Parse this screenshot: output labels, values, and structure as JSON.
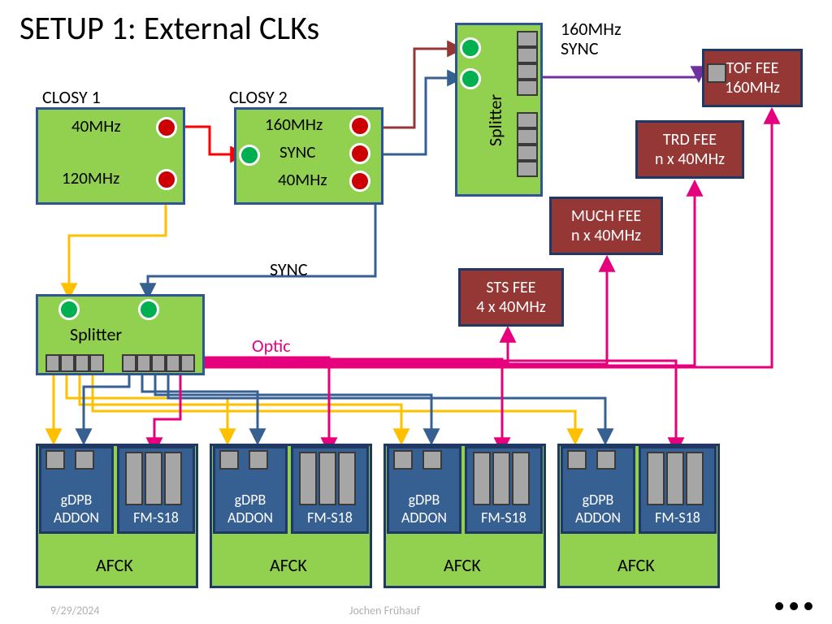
{
  "title": "SETUP 1: External CLKs",
  "footer_date": "9/29/2024",
  "footer_author": "Jochen Frühauf",
  "colors": {
    "green_fill": "#92d050",
    "green_stroke": "#2f5597",
    "brown_fill": "#953735",
    "brown_stroke": "#1f3864",
    "blue_fill": "#376092",
    "gray_fill": "#a6a6a6",
    "port_green": "#00b050",
    "port_red": "#cc0000",
    "wire_red": "#ff0000",
    "wire_darkred": "#953735",
    "wire_blue": "#376092",
    "wire_yellow": "#ffc000",
    "wire_magenta": "#e6007e",
    "wire_purple": "#7030a0"
  },
  "labels": {
    "closy1": "CLOSY 1",
    "closy2": "CLOSY 2",
    "clk_40": "40MHz",
    "clk_120": "120MHz",
    "clk_160": "160MHz",
    "sync": "SYNC",
    "splitter": "Splitter",
    "optic": "Optic",
    "top_splitter_label": "160MHz\nSYNC"
  },
  "fee": {
    "tof": {
      "line1": "TOF FEE",
      "line2": "160MHz"
    },
    "trd": {
      "line1": "TRD FEE",
      "line2": "n x 40MHz"
    },
    "much": {
      "line1": "MUCH FEE",
      "line2": "n x 40MHz"
    },
    "sts": {
      "line1": "STS FEE",
      "line2": "4 x 40MHz"
    }
  },
  "afck": {
    "gdpb_line1": "gDPB",
    "gdpb_line2": "ADDON",
    "fms18": "FM-S18",
    "afck": "AFCK"
  },
  "afck_positions": [
    44,
    258,
    472,
    686
  ],
  "style": {
    "border_width": 3,
    "font_block": 22,
    "font_small": 20,
    "wire_width": 3
  }
}
